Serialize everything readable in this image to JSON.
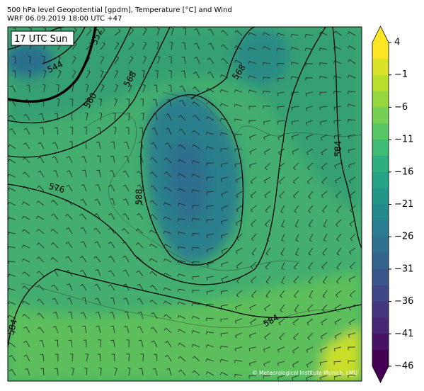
{
  "header": {
    "title": "500 hPa level Geopotential [gpdm], Temperature [°C] and Wind",
    "subtitle": "WRF 06.09.2019 18:00 UTC +47"
  },
  "map": {
    "time_label": "17 UTC Sun",
    "credit": "© Meteorological Institute Munich, LMU",
    "contour_labels": [
      "552",
      "544",
      "560",
      "568",
      "568",
      "576",
      "588",
      "584",
      "584",
      "584"
    ]
  },
  "colorbar": {
    "ticks": [
      "4",
      "−1",
      "−6",
      "−11",
      "−16",
      "−21",
      "−26",
      "−31",
      "−36",
      "−41",
      "−46"
    ]
  }
}
